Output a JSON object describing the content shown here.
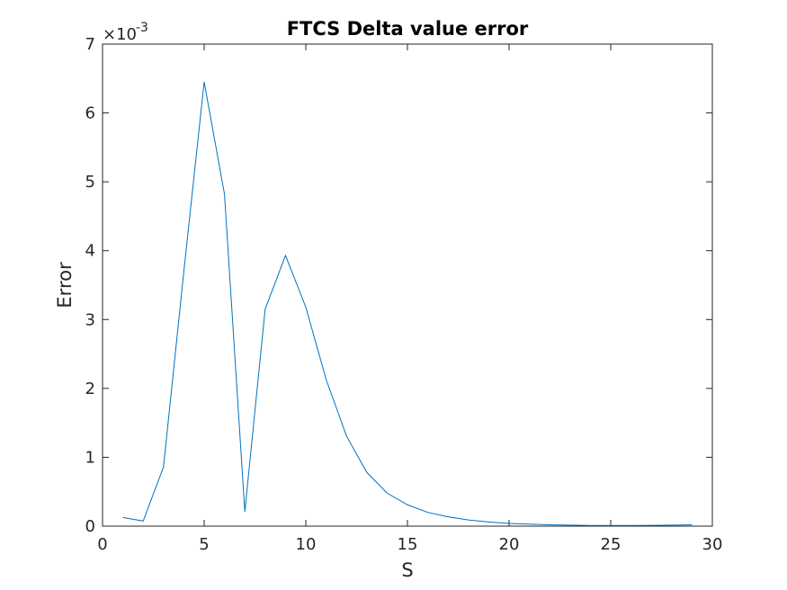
{
  "chart_data": {
    "type": "line",
    "title": "FTCS Delta value error",
    "xlabel": "S",
    "ylabel": "Error",
    "xlim": [
      0,
      30
    ],
    "ylim": [
      0,
      0.007
    ],
    "xticks": [
      0,
      5,
      10,
      15,
      20,
      25,
      30
    ],
    "xtick_labels": [
      "0",
      "5",
      "10",
      "15",
      "20",
      "25",
      "30"
    ],
    "yticks": [
      0,
      0.001,
      0.002,
      0.003,
      0.004,
      0.005,
      0.006,
      0.007
    ],
    "ytick_labels": [
      "0",
      "1",
      "2",
      "3",
      "4",
      "5",
      "6",
      "7"
    ],
    "y_exponent_base": "×10",
    "y_exponent_power": "-3",
    "grid": false,
    "color": "#0072bd",
    "series": [
      {
        "x": [
          1,
          2,
          3,
          4,
          5,
          6,
          7,
          8,
          9,
          10,
          11,
          12,
          13,
          14,
          15,
          16,
          17,
          18,
          19,
          20,
          21,
          22,
          23,
          24,
          25,
          26,
          27,
          28,
          29
        ],
        "values": [
          0.000125,
          7.5e-05,
          0.00086,
          0.0037,
          0.00645,
          0.00482,
          0.00021,
          0.00315,
          0.00393,
          0.00318,
          0.00213,
          0.00131,
          0.00078,
          0.00048,
          0.00031,
          0.0002,
          0.000135,
          9e-05,
          6e-05,
          4e-05,
          3e-05,
          2e-05,
          1.5e-05,
          1e-05,
          1e-05,
          1e-05,
          1.2e-05,
          1.5e-05,
          2e-05
        ]
      }
    ]
  }
}
